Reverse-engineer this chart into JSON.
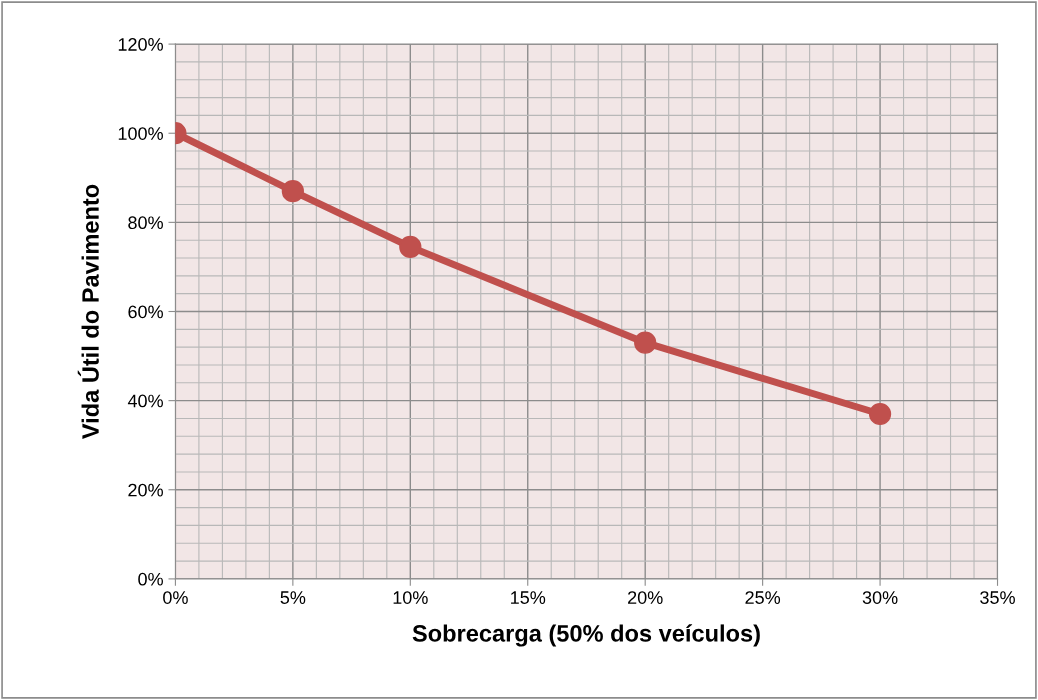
{
  "chart_data": {
    "type": "line",
    "xlabel": "Sobrecarga (50% dos veículos)",
    "ylabel": "Vida Útil do Pavimento",
    "x": [
      0,
      5,
      10,
      20,
      30
    ],
    "series": [
      {
        "color": "#c0504d",
        "values": [
          100,
          87,
          74.5,
          53,
          37
        ]
      }
    ],
    "xlim": [
      0,
      35
    ],
    "xticks": [
      {
        "value": 0,
        "label": "0%"
      },
      {
        "value": 5,
        "label": "5%"
      },
      {
        "value": 10,
        "label": "10%"
      },
      {
        "value": 15,
        "label": "15%"
      },
      {
        "value": 20,
        "label": "20%"
      },
      {
        "value": 25,
        "label": "25%"
      },
      {
        "value": 30,
        "label": "30%"
      },
      {
        "value": 35,
        "label": "35%"
      }
    ],
    "ylim": [
      0,
      120
    ],
    "yticks": [
      {
        "value": 0,
        "label": "0%"
      },
      {
        "value": 20,
        "label": "20%"
      },
      {
        "value": 40,
        "label": "40%"
      },
      {
        "value": 60,
        "label": "60%"
      },
      {
        "value": 80,
        "label": "80%"
      },
      {
        "value": 100,
        "label": "100%"
      },
      {
        "value": 120,
        "label": "120%"
      }
    ],
    "grid": true,
    "marker": "circle",
    "line_style": "solid",
    "legend": false
  }
}
